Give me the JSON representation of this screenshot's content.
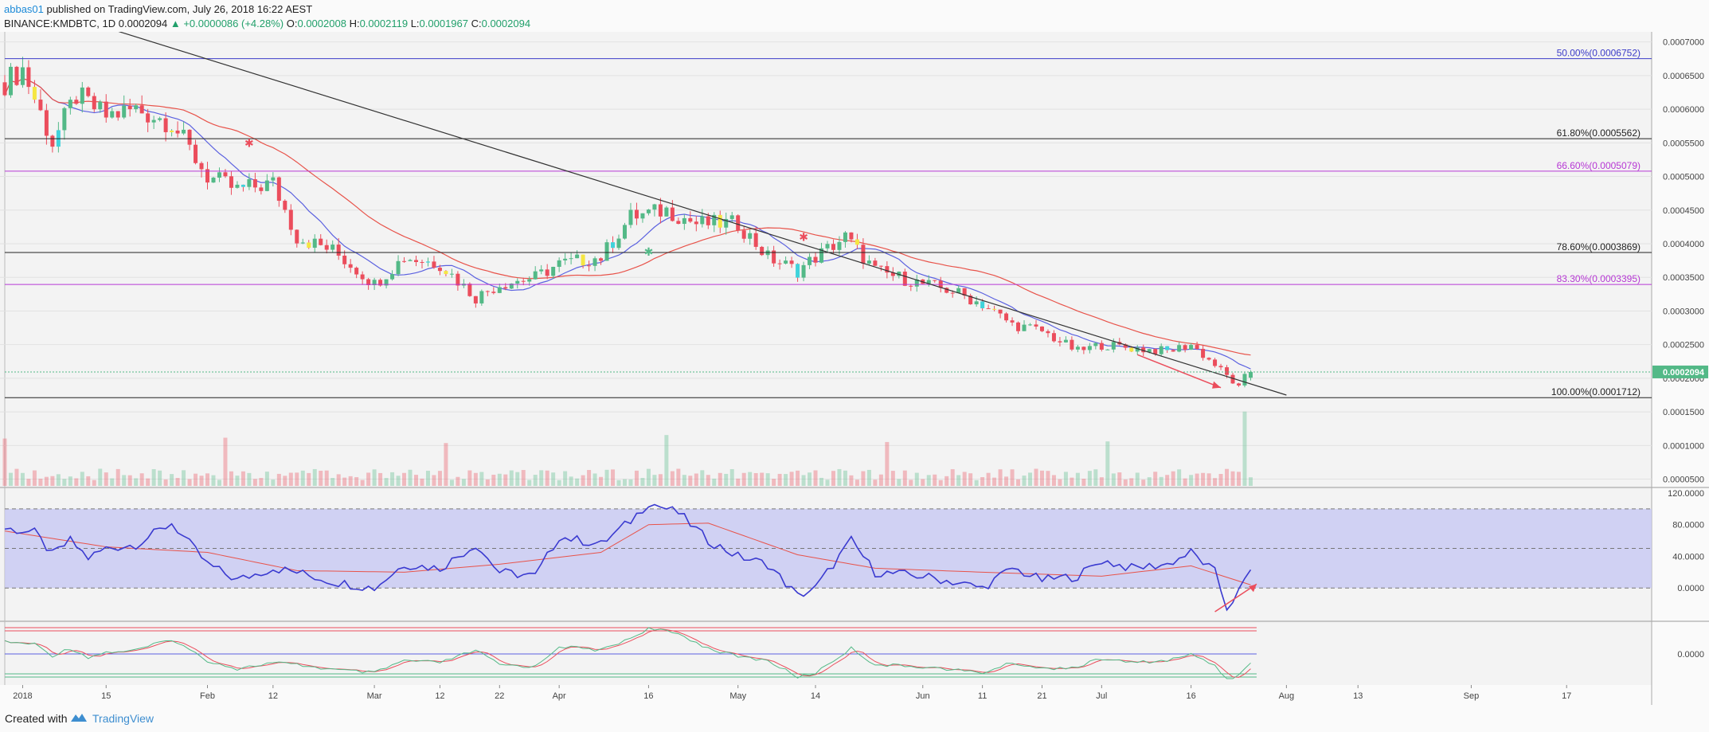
{
  "header": {
    "user": "abbas01",
    "published": "published on TradingView.com, July 26, 2018 16:22 AEST",
    "symbol": "BINANCE:KMDBTC, 1D",
    "last": "0.0002094",
    "change_arrow": "▲",
    "change": "+0.0000086 (+4.28%)",
    "o_label": "O:",
    "o": "0.0002008",
    "h_label": "H:",
    "h": "0.0002119",
    "l_label": "L:",
    "l": "0.0001967",
    "c_label": "C:",
    "c": "0.0002094"
  },
  "footer": {
    "created": "Created with",
    "brand": "TradingView",
    "logo_icon": "tradingview-logo-icon"
  },
  "colors": {
    "up": "#53b987",
    "down": "#eb4d5c",
    "yellow": "#f5e642",
    "cyan": "#3fd3db",
    "ma_fast": "#5b61e0",
    "ma_slow": "#e8534a",
    "trend": "#333333",
    "fib_blue": "#3c3cc8",
    "fib_violet": "#b638d4",
    "fib_black": "#222222",
    "rsi": "#3a3ad0",
    "rsi_band": "#c7c8f2",
    "last_badge": "#53b987"
  },
  "chart_data": [
    {
      "type": "candlestick",
      "title": "BINANCE:KMDBTC, 1D",
      "ylim": [
        4e-05,
        0.000715
      ],
      "y_ticks": [
        "0.0007000",
        "0.0006500",
        "0.0006000",
        "0.0005500",
        "0.0005000",
        "0.0004500",
        "0.0004000",
        "0.0003500",
        "0.0003000",
        "0.0002500",
        "0.0002000",
        "0.0001500",
        "0.0001000",
        "0.0000500"
      ],
      "x_labels": [
        "2018",
        "15",
        "Feb",
        "12",
        "Mar",
        "12",
        "22",
        "Apr",
        "16",
        "May",
        "14",
        "Jun",
        "11",
        "21",
        "Jul",
        "16",
        "Aug",
        "13",
        "Sep",
        "17"
      ],
      "x_label_dates": [
        "2018-01-01",
        "2018-01-15",
        "2018-02-01",
        "2018-02-12",
        "2018-03-01",
        "2018-03-12",
        "2018-03-22",
        "2018-04-01",
        "2018-04-16",
        "2018-05-01",
        "2018-05-14",
        "2018-06-01",
        "2018-06-11",
        "2018-06-21",
        "2018-07-01",
        "2018-07-16",
        "2018-08-01",
        "2018-08-13",
        "2018-09-01",
        "2018-09-17"
      ],
      "x_range": [
        "2017-12-29",
        "2018-10-01"
      ],
      "last_price": "0.0002094",
      "close_anchors": [
        [
          "2017-12-29",
          0.00064
        ],
        [
          "2018-01-01",
          0.00066
        ],
        [
          "2018-01-06",
          0.00055
        ],
        [
          "2018-01-10",
          0.00062
        ],
        [
          "2018-01-15",
          0.00059
        ],
        [
          "2018-01-20",
          0.0006
        ],
        [
          "2018-01-26",
          0.00058
        ],
        [
          "2018-02-01",
          0.0005
        ],
        [
          "2018-02-06",
          0.00048
        ],
        [
          "2018-02-12",
          0.00049
        ],
        [
          "2018-02-16",
          0.00041
        ],
        [
          "2018-02-22",
          0.00039
        ],
        [
          "2018-03-01",
          0.00034
        ],
        [
          "2018-03-06",
          0.00038
        ],
        [
          "2018-03-12",
          0.00037
        ],
        [
          "2018-03-18",
          0.00032
        ],
        [
          "2018-03-22",
          0.00034
        ],
        [
          "2018-03-28",
          0.00035
        ],
        [
          "2018-04-01",
          0.00037
        ],
        [
          "2018-04-08",
          0.00038
        ],
        [
          "2018-04-13",
          0.00044
        ],
        [
          "2018-04-19",
          0.00045
        ],
        [
          "2018-04-24",
          0.00043
        ],
        [
          "2018-05-01",
          0.00043
        ],
        [
          "2018-05-06",
          0.00038
        ],
        [
          "2018-05-11",
          0.00036
        ],
        [
          "2018-05-14",
          0.00038
        ],
        [
          "2018-05-19",
          0.00041
        ],
        [
          "2018-05-24",
          0.00036
        ],
        [
          "2018-06-01",
          0.00034
        ],
        [
          "2018-06-06",
          0.00033
        ],
        [
          "2018-06-11",
          0.00031
        ],
        [
          "2018-06-16",
          0.00028
        ],
        [
          "2018-06-21",
          0.00027
        ],
        [
          "2018-06-27",
          0.00024
        ],
        [
          "2018-07-01",
          0.00025
        ],
        [
          "2018-07-06",
          0.000245
        ],
        [
          "2018-07-12",
          0.00024
        ],
        [
          "2018-07-16",
          0.00025
        ],
        [
          "2018-07-20",
          0.00022
        ],
        [
          "2018-07-23",
          0.000195
        ],
        [
          "2018-07-24",
          0.000185
        ],
        [
          "2018-07-25",
          0.0002008
        ],
        [
          "2018-07-26",
          0.0002094
        ]
      ],
      "volume_axis": "shares price axis",
      "trend_line": {
        "from": [
          "2018-01-01",
          0.00076
        ],
        "to": [
          "2018-08-01",
          0.000175
        ]
      },
      "fib_levels": [
        {
          "label": "50.00%(0.0006752)",
          "price": 0.0006752,
          "color": "#3c3cc8"
        },
        {
          "label": "61.80%(0.0005562)",
          "price": 0.0005562,
          "color": "#222222"
        },
        {
          "label": "66.60%(0.0005079)",
          "price": 0.0005079,
          "color": "#b638d4"
        },
        {
          "label": "78.60%(0.0003869)",
          "price": 0.0003869,
          "color": "#222222"
        },
        {
          "label": "83.30%(0.0003395)",
          "price": 0.0003395,
          "color": "#b638d4"
        },
        {
          "label": "100.00%(0.0001712)",
          "price": 0.0001712,
          "color": "#222222"
        }
      ]
    },
    {
      "type": "line",
      "ylim": [
        -40,
        125
      ],
      "y_ticks": [
        "120.0000",
        "80.0000",
        "40.0000",
        "0.0000"
      ],
      "band": [
        0,
        100
      ],
      "dashed_levels": [
        100,
        50,
        0
      ],
      "rsi_anchors": [
        [
          "2017-12-29",
          75
        ],
        [
          "2018-01-03",
          70
        ],
        [
          "2018-01-06",
          42
        ],
        [
          "2018-01-09",
          60
        ],
        [
          "2018-01-12",
          38
        ],
        [
          "2018-01-15",
          50
        ],
        [
          "2018-01-20",
          55
        ],
        [
          "2018-01-26",
          82
        ],
        [
          "2018-02-01",
          30
        ],
        [
          "2018-02-06",
          10
        ],
        [
          "2018-02-12",
          25
        ],
        [
          "2018-02-16",
          20
        ],
        [
          "2018-02-22",
          8
        ],
        [
          "2018-03-01",
          0
        ],
        [
          "2018-03-06",
          30
        ],
        [
          "2018-03-12",
          25
        ],
        [
          "2018-03-18",
          55
        ],
        [
          "2018-03-22",
          20
        ],
        [
          "2018-03-28",
          15
        ],
        [
          "2018-04-01",
          65
        ],
        [
          "2018-04-08",
          55
        ],
        [
          "2018-04-13",
          85
        ],
        [
          "2018-04-16",
          108
        ],
        [
          "2018-04-21",
          95
        ],
        [
          "2018-04-26",
          60
        ],
        [
          "2018-05-01",
          40
        ],
        [
          "2018-05-06",
          30
        ],
        [
          "2018-05-11",
          -10
        ],
        [
          "2018-05-14",
          0
        ],
        [
          "2018-05-20",
          60
        ],
        [
          "2018-05-24",
          20
        ],
        [
          "2018-06-01",
          15
        ],
        [
          "2018-06-06",
          8
        ],
        [
          "2018-06-11",
          0
        ],
        [
          "2018-06-16",
          25
        ],
        [
          "2018-06-21",
          10
        ],
        [
          "2018-06-27",
          15
        ],
        [
          "2018-07-01",
          35
        ],
        [
          "2018-07-06",
          25
        ],
        [
          "2018-07-12",
          30
        ],
        [
          "2018-07-16",
          45
        ],
        [
          "2018-07-20",
          20
        ],
        [
          "2018-07-22",
          -25
        ],
        [
          "2018-07-24",
          -5
        ],
        [
          "2018-07-26",
          22
        ]
      ],
      "signal_anchors": [
        [
          "2017-12-29",
          72
        ],
        [
          "2018-01-15",
          52
        ],
        [
          "2018-02-01",
          45
        ],
        [
          "2018-02-16",
          22
        ],
        [
          "2018-03-06",
          20
        ],
        [
          "2018-03-22",
          30
        ],
        [
          "2018-04-08",
          45
        ],
        [
          "2018-04-16",
          80
        ],
        [
          "2018-04-26",
          82
        ],
        [
          "2018-05-11",
          42
        ],
        [
          "2018-05-24",
          25
        ],
        [
          "2018-06-11",
          20
        ],
        [
          "2018-07-01",
          15
        ],
        [
          "2018-07-16",
          28
        ],
        [
          "2018-07-26",
          4
        ]
      ]
    },
    {
      "type": "line",
      "y_ticks": [
        "0.0000"
      ]
    }
  ],
  "volume_bars": "one per candle",
  "annotations": {
    "price_arrow": "down",
    "rsi_arrow": "up",
    "marker_icon": "star-marker-icon"
  }
}
